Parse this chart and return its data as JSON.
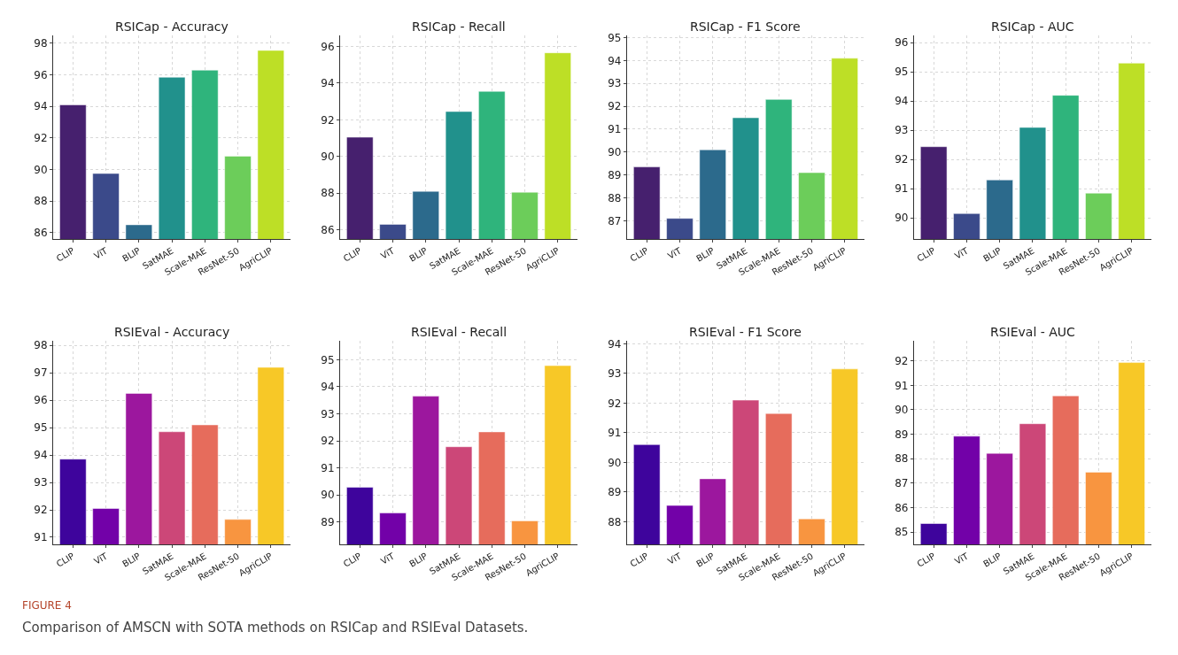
{
  "chart_data": [
    {
      "type": "bar",
      "title": "RSICap - Accuracy",
      "categories": [
        "CLIP",
        "ViT",
        "BLIP",
        "SatMAE",
        "Scale-MAE",
        "ResNet-50",
        "AgriCLIP"
      ],
      "values": [
        94.1,
        89.75,
        86.5,
        95.85,
        96.3,
        90.85,
        97.55
      ],
      "colors": [
        "#46206e",
        "#3b4a8a",
        "#2c6a8c",
        "#21918c",
        "#2fb47c",
        "#6ccd5a",
        "#bddf26"
      ],
      "ylim": [
        85.6,
        98.5
      ],
      "yticks": [
        86,
        88,
        90,
        92,
        94,
        96,
        98
      ],
      "grid": true
    },
    {
      "type": "bar",
      "title": "RSICap - Recall",
      "categories": [
        "CLIP",
        "ViT",
        "BLIP",
        "SatMAE",
        "Scale-MAE",
        "ResNet-50",
        "AgriCLIP"
      ],
      "values": [
        91.05,
        86.3,
        88.1,
        92.45,
        93.55,
        88.05,
        95.65
      ],
      "colors": [
        "#46206e",
        "#3b4a8a",
        "#2c6a8c",
        "#21918c",
        "#2fb47c",
        "#6ccd5a",
        "#bddf26"
      ],
      "ylim": [
        85.5,
        96.6
      ],
      "yticks": [
        86,
        88,
        90,
        92,
        94,
        96
      ],
      "grid": true
    },
    {
      "type": "bar",
      "title": "RSICap - F1 Score",
      "categories": [
        "CLIP",
        "ViT",
        "BLIP",
        "SatMAE",
        "Scale-MAE",
        "ResNet-50",
        "AgriCLIP"
      ],
      "values": [
        89.35,
        87.1,
        90.1,
        91.5,
        92.3,
        89.1,
        94.1
      ],
      "colors": [
        "#46206e",
        "#3b4a8a",
        "#2c6a8c",
        "#21918c",
        "#2fb47c",
        "#6ccd5a",
        "#bddf26"
      ],
      "ylim": [
        86.2,
        95.1
      ],
      "yticks": [
        87,
        88,
        89,
        90,
        91,
        92,
        93,
        94,
        95
      ],
      "grid": true
    },
    {
      "type": "bar",
      "title": "RSICap - AUC",
      "categories": [
        "CLIP",
        "ViT",
        "BLIP",
        "SatMAE",
        "Scale-MAE",
        "ResNet-50",
        "AgriCLIP"
      ],
      "values": [
        92.44,
        90.15,
        91.3,
        93.1,
        94.2,
        90.85,
        95.3
      ],
      "colors": [
        "#46206e",
        "#3b4a8a",
        "#2c6a8c",
        "#21918c",
        "#2fb47c",
        "#6ccd5a",
        "#bddf26"
      ],
      "ylim": [
        89.28,
        96.25
      ],
      "yticks": [
        90,
        91,
        92,
        93,
        94,
        95,
        96
      ],
      "grid": true
    },
    {
      "type": "bar",
      "title": "RSIEval - Accuracy",
      "categories": [
        "CLIP",
        "ViT",
        "BLIP",
        "SatMAE",
        "Scale-MAE",
        "ResNet-50",
        "AgriCLIP"
      ],
      "values": [
        93.85,
        92.05,
        96.25,
        94.85,
        95.1,
        91.65,
        97.2
      ],
      "colors": [
        "#3e049c",
        "#7201a8",
        "#9c179e",
        "#cc4778",
        "#e66c5c",
        "#f89540",
        "#f7c827"
      ],
      "ylim": [
        90.74,
        98.17
      ],
      "yticks": [
        91,
        92,
        93,
        94,
        95,
        96,
        97,
        98
      ],
      "grid": true
    },
    {
      "type": "bar",
      "title": "RSIEval - Recall",
      "categories": [
        "CLIP",
        "ViT",
        "BLIP",
        "SatMAE",
        "Scale-MAE",
        "ResNet-50",
        "AgriCLIP"
      ],
      "values": [
        90.28,
        89.33,
        93.65,
        91.78,
        92.33,
        89.04,
        94.78
      ],
      "colors": [
        "#3e049c",
        "#7201a8",
        "#9c179e",
        "#cc4778",
        "#e66c5c",
        "#f89540",
        "#f7c827"
      ],
      "ylim": [
        88.17,
        95.7
      ],
      "yticks": [
        89,
        90,
        91,
        92,
        93,
        94,
        95
      ],
      "grid": true
    },
    {
      "type": "bar",
      "title": "RSIEval - F1 Score",
      "categories": [
        "CLIP",
        "ViT",
        "BLIP",
        "SatMAE",
        "Scale-MAE",
        "ResNet-50",
        "AgriCLIP"
      ],
      "values": [
        90.6,
        88.55,
        89.45,
        92.1,
        91.65,
        88.1,
        93.15
      ],
      "colors": [
        "#3e049c",
        "#7201a8",
        "#9c179e",
        "#cc4778",
        "#e66c5c",
        "#f89540",
        "#f7c827"
      ],
      "ylim": [
        87.24,
        94.1
      ],
      "yticks": [
        88,
        89,
        90,
        91,
        92,
        93,
        94
      ],
      "grid": true
    },
    {
      "type": "bar",
      "title": "RSIEval - AUC",
      "categories": [
        "CLIP",
        "ViT",
        "BLIP",
        "SatMAE",
        "Scale-MAE",
        "ResNet-50",
        "AgriCLIP"
      ],
      "values": [
        85.35,
        88.92,
        88.22,
        89.43,
        90.57,
        87.45,
        91.93
      ],
      "colors": [
        "#3e049c",
        "#7201a8",
        "#9c179e",
        "#cc4778",
        "#e66c5c",
        "#f89540",
        "#f7c827"
      ],
      "ylim": [
        84.5,
        92.82
      ],
      "yticks": [
        85,
        86,
        87,
        88,
        89,
        90,
        91,
        92
      ],
      "grid": true,
      "annotations": [
        "FIGURE 4",
        "Comparison of AMSCN with SOTA methods on RSICap and RSIEval Datasets."
      ]
    }
  ]
}
